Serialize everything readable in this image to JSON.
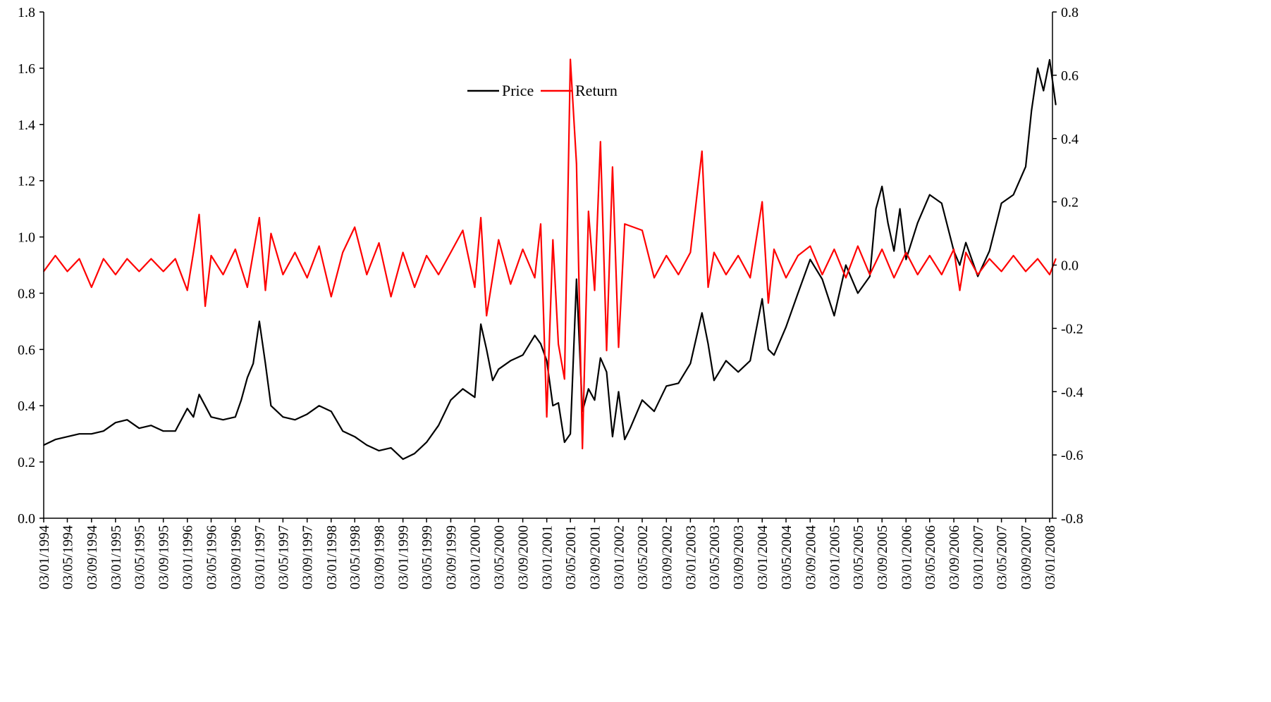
{
  "chart_data": {
    "type": "line",
    "title": "",
    "xlabel": "",
    "ylabel": "",
    "y2label": "",
    "grid": false,
    "legend_position": "top-center",
    "ylim": [
      0.0,
      1.8
    ],
    "y2lim": [
      -0.8,
      0.8
    ],
    "y_ticks": [
      "0.0",
      "0.2",
      "0.4",
      "0.6",
      "0.8",
      "1.0",
      "1.2",
      "1.4",
      "1.6",
      "1.8"
    ],
    "y2_ticks": [
      "-0.8",
      "-0.6",
      "-0.4",
      "-0.2",
      "0.0",
      "0.2",
      "0.4",
      "0.6",
      "0.8"
    ],
    "x_ticks": [
      "03/01/1994",
      "03/05/1994",
      "03/09/1994",
      "03/01/1995",
      "03/05/1995",
      "03/09/1995",
      "03/01/1996",
      "03/05/1996",
      "03/09/1996",
      "03/01/1997",
      "03/05/1997",
      "03/09/1997",
      "03/01/1998",
      "03/05/1998",
      "03/09/1998",
      "03/01/1999",
      "03/05/1999",
      "03/09/1999",
      "03/01/2000",
      "03/05/2000",
      "03/09/2000",
      "03/01/2001",
      "03/05/2001",
      "03/09/2001",
      "03/01/2002",
      "03/05/2002",
      "03/09/2002",
      "03/01/2003",
      "03/05/2003",
      "03/09/2003",
      "03/01/2004",
      "03/05/2004",
      "03/09/2004",
      "03/01/2005",
      "03/05/2005",
      "03/09/2005",
      "03/01/2006",
      "03/05/2006",
      "03/09/2006",
      "03/01/2007",
      "03/05/2007",
      "03/09/2007",
      "03/01/2008"
    ],
    "series": [
      {
        "name": "Price",
        "axis": "left",
        "color": "#000000",
        "points": [
          [
            "03/01/1994",
            0.26
          ],
          [
            "03/03/1994",
            0.28
          ],
          [
            "03/05/1994",
            0.29
          ],
          [
            "03/07/1994",
            0.3
          ],
          [
            "03/09/1994",
            0.3
          ],
          [
            "03/11/1994",
            0.31
          ],
          [
            "03/01/1995",
            0.34
          ],
          [
            "03/03/1995",
            0.35
          ],
          [
            "03/05/1995",
            0.32
          ],
          [
            "03/07/1995",
            0.33
          ],
          [
            "03/09/1995",
            0.31
          ],
          [
            "03/11/1995",
            0.31
          ],
          [
            "03/01/1996",
            0.39
          ],
          [
            "03/02/1996",
            0.36
          ],
          [
            "03/03/1996",
            0.44
          ],
          [
            "03/05/1996",
            0.36
          ],
          [
            "03/07/1996",
            0.35
          ],
          [
            "03/09/1996",
            0.36
          ],
          [
            "03/10/1996",
            0.42
          ],
          [
            "03/11/1996",
            0.5
          ],
          [
            "03/12/1996",
            0.55
          ],
          [
            "03/01/1997",
            0.7
          ],
          [
            "03/02/1997",
            0.55
          ],
          [
            "03/03/1997",
            0.4
          ],
          [
            "03/05/1997",
            0.36
          ],
          [
            "03/07/1997",
            0.35
          ],
          [
            "03/09/1997",
            0.37
          ],
          [
            "03/11/1997",
            0.4
          ],
          [
            "03/01/1998",
            0.38
          ],
          [
            "03/03/1998",
            0.31
          ],
          [
            "03/05/1998",
            0.29
          ],
          [
            "03/07/1998",
            0.26
          ],
          [
            "03/09/1998",
            0.24
          ],
          [
            "03/11/1998",
            0.25
          ],
          [
            "03/01/1999",
            0.21
          ],
          [
            "03/03/1999",
            0.23
          ],
          [
            "03/05/1999",
            0.27
          ],
          [
            "03/07/1999",
            0.33
          ],
          [
            "03/09/1999",
            0.42
          ],
          [
            "03/11/1999",
            0.46
          ],
          [
            "03/01/2000",
            0.43
          ],
          [
            "03/02/2000",
            0.69
          ],
          [
            "03/03/2000",
            0.6
          ],
          [
            "03/04/2000",
            0.49
          ],
          [
            "03/05/2000",
            0.53
          ],
          [
            "03/07/2000",
            0.56
          ],
          [
            "03/09/2000",
            0.58
          ],
          [
            "03/11/2000",
            0.65
          ],
          [
            "03/12/2000",
            0.62
          ],
          [
            "03/01/2001",
            0.56
          ],
          [
            "03/02/2001",
            0.4
          ],
          [
            "03/03/2001",
            0.41
          ],
          [
            "03/04/2001",
            0.27
          ],
          [
            "03/05/2001",
            0.3
          ],
          [
            "03/06/2001",
            0.85
          ],
          [
            "03/07/2001",
            0.38
          ],
          [
            "03/08/2001",
            0.46
          ],
          [
            "03/09/2001",
            0.42
          ],
          [
            "03/10/2001",
            0.57
          ],
          [
            "03/11/2001",
            0.52
          ],
          [
            "03/12/2001",
            0.29
          ],
          [
            "03/01/2002",
            0.45
          ],
          [
            "03/02/2002",
            0.28
          ],
          [
            "03/03/2002",
            0.32
          ],
          [
            "03/05/2002",
            0.42
          ],
          [
            "03/07/2002",
            0.38
          ],
          [
            "03/09/2002",
            0.47
          ],
          [
            "03/11/2002",
            0.48
          ],
          [
            "03/01/2003",
            0.55
          ],
          [
            "03/03/2003",
            0.73
          ],
          [
            "03/04/2003",
            0.62
          ],
          [
            "03/05/2003",
            0.49
          ],
          [
            "03/07/2003",
            0.56
          ],
          [
            "03/09/2003",
            0.52
          ],
          [
            "03/11/2003",
            0.56
          ],
          [
            "03/01/2004",
            0.78
          ],
          [
            "03/02/2004",
            0.6
          ],
          [
            "03/03/2004",
            0.58
          ],
          [
            "03/05/2004",
            0.68
          ],
          [
            "03/07/2004",
            0.8
          ],
          [
            "03/09/2004",
            0.92
          ],
          [
            "03/11/2004",
            0.85
          ],
          [
            "03/01/2005",
            0.72
          ],
          [
            "03/03/2005",
            0.9
          ],
          [
            "03/05/2005",
            0.8
          ],
          [
            "03/07/2005",
            0.86
          ],
          [
            "03/08/2005",
            1.1
          ],
          [
            "03/09/2005",
            1.18
          ],
          [
            "03/10/2005",
            1.05
          ],
          [
            "03/11/2005",
            0.95
          ],
          [
            "03/12/2005",
            1.1
          ],
          [
            "03/01/2006",
            0.92
          ],
          [
            "03/03/2006",
            1.05
          ],
          [
            "03/05/2006",
            1.15
          ],
          [
            "03/07/2006",
            1.12
          ],
          [
            "03/09/2006",
            0.95
          ],
          [
            "03/10/2006",
            0.9
          ],
          [
            "03/11/2006",
            0.98
          ],
          [
            "03/01/2007",
            0.86
          ],
          [
            "03/03/2007",
            0.95
          ],
          [
            "03/05/2007",
            1.12
          ],
          [
            "03/07/2007",
            1.15
          ],
          [
            "03/09/2007",
            1.25
          ],
          [
            "03/10/2007",
            1.45
          ],
          [
            "03/11/2007",
            1.6
          ],
          [
            "03/12/2007",
            1.52
          ],
          [
            "03/01/2008",
            1.63
          ],
          [
            "03/02/2008",
            1.47
          ]
        ]
      },
      {
        "name": "Return",
        "axis": "right",
        "color": "#ff0000",
        "points": [
          [
            "03/01/1994",
            -0.02
          ],
          [
            "03/03/1994",
            0.03
          ],
          [
            "03/05/1994",
            -0.02
          ],
          [
            "03/07/1994",
            0.02
          ],
          [
            "03/09/1994",
            -0.07
          ],
          [
            "03/11/1994",
            0.02
          ],
          [
            "03/01/1995",
            -0.03
          ],
          [
            "03/03/1995",
            0.02
          ],
          [
            "03/05/1995",
            -0.02
          ],
          [
            "03/07/1995",
            0.02
          ],
          [
            "03/09/1995",
            -0.02
          ],
          [
            "03/11/1995",
            0.02
          ],
          [
            "03/01/1996",
            -0.08
          ],
          [
            "03/02/1996",
            0.04
          ],
          [
            "03/03/1996",
            0.16
          ],
          [
            "03/04/1996",
            -0.13
          ],
          [
            "03/05/1996",
            0.03
          ],
          [
            "03/07/1996",
            -0.03
          ],
          [
            "03/09/1996",
            0.05
          ],
          [
            "03/11/1996",
            -0.07
          ],
          [
            "03/01/1997",
            0.15
          ],
          [
            "03/02/1997",
            -0.08
          ],
          [
            "03/03/1997",
            0.1
          ],
          [
            "03/05/1997",
            -0.03
          ],
          [
            "03/07/1997",
            0.04
          ],
          [
            "03/09/1997",
            -0.04
          ],
          [
            "03/11/1997",
            0.06
          ],
          [
            "03/01/1998",
            -0.1
          ],
          [
            "03/03/1998",
            0.04
          ],
          [
            "03/05/1998",
            0.12
          ],
          [
            "03/07/1998",
            -0.03
          ],
          [
            "03/09/1998",
            0.07
          ],
          [
            "03/11/1998",
            -0.1
          ],
          [
            "03/01/1999",
            0.04
          ],
          [
            "03/03/1999",
            -0.07
          ],
          [
            "03/05/1999",
            0.03
          ],
          [
            "03/07/1999",
            -0.03
          ],
          [
            "03/09/1999",
            0.04
          ],
          [
            "03/11/1999",
            0.11
          ],
          [
            "03/01/2000",
            -0.07
          ],
          [
            "03/02/2000",
            0.15
          ],
          [
            "03/03/2000",
            -0.16
          ],
          [
            "03/05/2000",
            0.08
          ],
          [
            "03/07/2000",
            -0.06
          ],
          [
            "03/09/2000",
            0.05
          ],
          [
            "03/11/2000",
            -0.04
          ],
          [
            "03/12/2000",
            0.13
          ],
          [
            "03/01/2001",
            -0.48
          ],
          [
            "03/02/2001",
            0.08
          ],
          [
            "03/03/2001",
            -0.25
          ],
          [
            "03/04/2001",
            -0.36
          ],
          [
            "03/05/2001",
            0.65
          ],
          [
            "03/06/2001",
            0.32
          ],
          [
            "03/07/2001",
            -0.58
          ],
          [
            "03/08/2001",
            0.17
          ],
          [
            "03/09/2001",
            -0.08
          ],
          [
            "03/10/2001",
            0.39
          ],
          [
            "03/11/2001",
            -0.27
          ],
          [
            "03/12/2001",
            0.31
          ],
          [
            "03/01/2002",
            -0.26
          ],
          [
            "03/02/2002",
            0.13
          ],
          [
            "03/05/2002",
            0.11
          ],
          [
            "03/07/2002",
            -0.04
          ],
          [
            "03/09/2002",
            0.03
          ],
          [
            "03/11/2002",
            -0.03
          ],
          [
            "03/01/2003",
            0.04
          ],
          [
            "03/03/2003",
            0.36
          ],
          [
            "03/04/2003",
            -0.07
          ],
          [
            "03/05/2003",
            0.04
          ],
          [
            "03/07/2003",
            -0.03
          ],
          [
            "03/09/2003",
            0.03
          ],
          [
            "03/11/2003",
            -0.04
          ],
          [
            "03/01/2004",
            0.2
          ],
          [
            "03/02/2004",
            -0.12
          ],
          [
            "03/03/2004",
            0.05
          ],
          [
            "03/05/2004",
            -0.04
          ],
          [
            "03/07/2004",
            0.03
          ],
          [
            "03/09/2004",
            0.06
          ],
          [
            "03/11/2004",
            -0.03
          ],
          [
            "03/01/2005",
            0.05
          ],
          [
            "03/03/2005",
            -0.04
          ],
          [
            "03/05/2005",
            0.06
          ],
          [
            "03/07/2005",
            -0.03
          ],
          [
            "03/09/2005",
            0.05
          ],
          [
            "03/11/2005",
            -0.04
          ],
          [
            "03/01/2006",
            0.04
          ],
          [
            "03/03/2006",
            -0.03
          ],
          [
            "03/05/2006",
            0.03
          ],
          [
            "03/07/2006",
            -0.03
          ],
          [
            "03/09/2006",
            0.05
          ],
          [
            "03/10/2006",
            -0.08
          ],
          [
            "03/11/2006",
            0.04
          ],
          [
            "03/01/2007",
            -0.03
          ],
          [
            "03/03/2007",
            0.02
          ],
          [
            "03/05/2007",
            -0.02
          ],
          [
            "03/07/2007",
            0.03
          ],
          [
            "03/09/2007",
            -0.02
          ],
          [
            "03/11/2007",
            0.02
          ],
          [
            "03/01/2008",
            -0.03
          ],
          [
            "03/02/2008",
            0.02
          ]
        ]
      }
    ]
  }
}
